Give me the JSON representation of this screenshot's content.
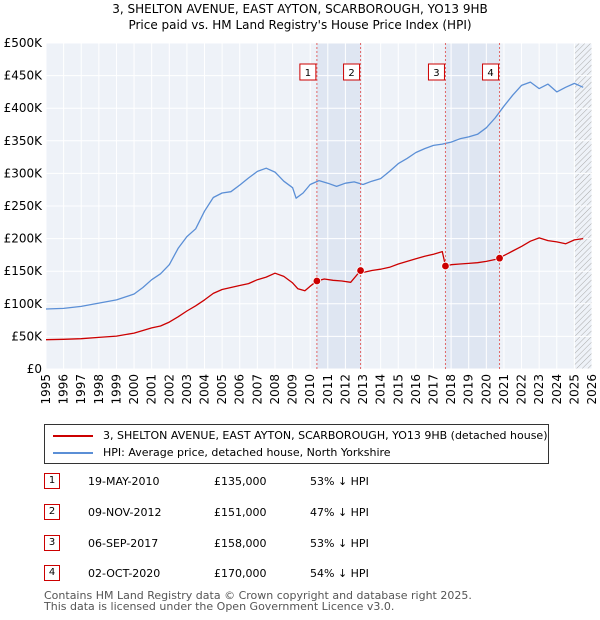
{
  "header": {
    "title": "3, SHELTON AVENUE, EAST AYTON, SCARBOROUGH, YO13 9HB",
    "subtitle": "Price paid vs. HM Land Registry's House Price Index (HPI)"
  },
  "chart_data": {
    "type": "line",
    "title": "3, SHELTON AVENUE, EAST AYTON, SCARBOROUGH, YO13 9HB",
    "subtitle": "Price paid vs. HM Land Registry's House Price Index (HPI)",
    "xlabel": "",
    "ylabel": "",
    "xlim": [
      1995,
      2026
    ],
    "ylim": [
      0,
      500000
    ],
    "x_ticks": [
      "1995",
      "1996",
      "1997",
      "1998",
      "1999",
      "2000",
      "2001",
      "2002",
      "2003",
      "2004",
      "2005",
      "2006",
      "2007",
      "2008",
      "2009",
      "2010",
      "2011",
      "2012",
      "2013",
      "2014",
      "2015",
      "2016",
      "2017",
      "2018",
      "2019",
      "2020",
      "2021",
      "2022",
      "2023",
      "2024",
      "2025",
      "2026"
    ],
    "y_ticks": [
      {
        "value": 0,
        "label": "£0"
      },
      {
        "value": 50000,
        "label": "£50K"
      },
      {
        "value": 100000,
        "label": "£100K"
      },
      {
        "value": 150000,
        "label": "£150K"
      },
      {
        "value": 200000,
        "label": "£200K"
      },
      {
        "value": 250000,
        "label": "£250K"
      },
      {
        "value": 300000,
        "label": "£300K"
      },
      {
        "value": 350000,
        "label": "£350K"
      },
      {
        "value": 400000,
        "label": "£400K"
      },
      {
        "value": 450000,
        "label": "£450K"
      },
      {
        "value": 500000,
        "label": "£500K"
      }
    ],
    "grid": true,
    "shaded_periods": [
      {
        "from": 2010.38,
        "to": 2012.86
      },
      {
        "from": 2017.68,
        "to": 2020.75
      }
    ],
    "hatched_region_from": 2025.0,
    "series": [
      {
        "name": "3, SHELTON AVENUE, EAST AYTON, SCARBOROUGH, YO13 9HB (detached house)",
        "color": "#cc0000",
        "x": [
          1995,
          1996,
          1997,
          1998,
          1999,
          2000,
          2000.5,
          2001,
          2001.5,
          2002,
          2002.5,
          2003,
          2003.5,
          2004,
          2004.5,
          2005,
          2005.5,
          2006,
          2006.5,
          2007,
          2007.5,
          2008,
          2008.5,
          2009,
          2009.3,
          2009.7,
          2010,
          2010.38,
          2010.8,
          2011.3,
          2011.8,
          2012.3,
          2012.86,
          2013,
          2013.5,
          2014,
          2014.5,
          2015,
          2015.5,
          2016,
          2016.5,
          2017,
          2017.5,
          2017.68,
          2018,
          2018.5,
          2019,
          2019.5,
          2020,
          2020.5,
          2020.75,
          2021,
          2021.5,
          2022,
          2022.5,
          2023,
          2023.5,
          2024,
          2024.5,
          2025,
          2025.5
        ],
        "values": [
          45000,
          45500,
          46500,
          48500,
          50500,
          55000,
          59000,
          63000,
          66000,
          72000,
          80000,
          89000,
          97000,
          106000,
          116000,
          122000,
          125000,
          128000,
          131000,
          137000,
          141000,
          147000,
          142000,
          132000,
          123000,
          120000,
          127000,
          135000,
          138000,
          136000,
          135000,
          133000,
          151000,
          148000,
          151000,
          153000,
          156000,
          161000,
          165000,
          169000,
          173000,
          176000,
          180000,
          158000,
          160000,
          161000,
          162000,
          163000,
          165000,
          168000,
          170000,
          174000,
          181000,
          188000,
          196000,
          201000,
          197000,
          195000,
          192000,
          198000,
          200000
        ]
      },
      {
        "name": "HPI: Average price, detached house, North Yorkshire",
        "color": "#5b8fd6",
        "x": [
          1995,
          1996,
          1997,
          1998,
          1999,
          2000,
          2000.5,
          2001,
          2001.5,
          2002,
          2002.5,
          2003,
          2003.5,
          2004,
          2004.5,
          2005,
          2005.5,
          2006,
          2006.5,
          2007,
          2007.5,
          2008,
          2008.5,
          2009,
          2009.2,
          2009.6,
          2010,
          2010.5,
          2011,
          2011.5,
          2012,
          2012.5,
          2013,
          2013.5,
          2014,
          2014.5,
          2015,
          2015.5,
          2016,
          2016.5,
          2017,
          2017.5,
          2018,
          2018.5,
          2019,
          2019.5,
          2020,
          2020.5,
          2021,
          2021.5,
          2022,
          2022.5,
          2023,
          2023.5,
          2024,
          2024.5,
          2025,
          2025.5
        ],
        "values": [
          92000,
          93000,
          96000,
          101000,
          106000,
          115000,
          125000,
          137000,
          146000,
          160000,
          185000,
          203000,
          215000,
          242000,
          263000,
          270000,
          272000,
          282000,
          293000,
          303000,
          308000,
          302000,
          288000,
          278000,
          262000,
          270000,
          283000,
          289000,
          285000,
          280000,
          285000,
          287000,
          283000,
          288000,
          292000,
          303000,
          315000,
          323000,
          332000,
          338000,
          343000,
          345000,
          348000,
          353000,
          356000,
          360000,
          370000,
          385000,
          403000,
          420000,
          435000,
          440000,
          430000,
          437000,
          425000,
          432000,
          438000,
          432000
        ]
      }
    ],
    "sales": [
      {
        "num": "1",
        "x": 2010.38,
        "value": 135000
      },
      {
        "num": "2",
        "x": 2012.86,
        "value": 151000
      },
      {
        "num": "3",
        "x": 2017.68,
        "value": 158000
      },
      {
        "num": "4",
        "x": 2020.75,
        "value": 170000
      }
    ]
  },
  "legend": {
    "entries": [
      {
        "label": "3, SHELTON AVENUE, EAST AYTON, SCARBOROUGH, YO13 9HB (detached house)",
        "color": "#cc0000"
      },
      {
        "label": "HPI: Average price, detached house, North Yorkshire",
        "color": "#5b8fd6"
      }
    ]
  },
  "sales_table": [
    {
      "num": "1",
      "date": "19-MAY-2010",
      "price": "£135,000",
      "hpi": "53% ↓ HPI"
    },
    {
      "num": "2",
      "date": "09-NOV-2012",
      "price": "£151,000",
      "hpi": "47% ↓ HPI"
    },
    {
      "num": "3",
      "date": "06-SEP-2017",
      "price": "£158,000",
      "hpi": "53% ↓ HPI"
    },
    {
      "num": "4",
      "date": "02-OCT-2020",
      "price": "£170,000",
      "hpi": "54% ↓ HPI"
    }
  ],
  "footer": {
    "line1": "Contains HM Land Registry data © Crown copyright and database right 2025.",
    "line2": "This data is licensed under the Open Government Licence v3.0."
  }
}
